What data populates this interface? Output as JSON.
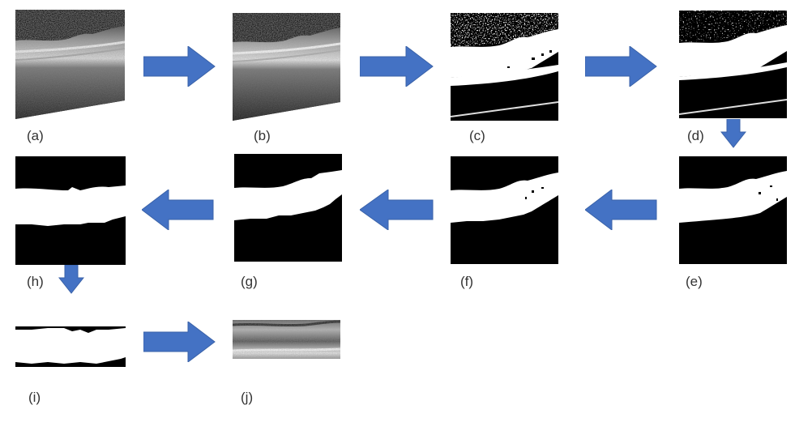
{
  "figure": {
    "description_labels": [
      "(a)",
      "(b)",
      "(c)",
      "(d)",
      "(e)",
      "(f)",
      "(g)",
      "(h)",
      "(i)",
      "(j)"
    ]
  },
  "panels": {
    "a": {
      "label": "(a)"
    },
    "b": {
      "label": "(b)"
    },
    "c": {
      "label": "(c)"
    },
    "d": {
      "label": "(d)"
    },
    "e": {
      "label": "(e)"
    },
    "f": {
      "label": "(f)"
    },
    "g": {
      "label": "(g)"
    },
    "h": {
      "label": "(h)"
    },
    "i": {
      "label": "(i)"
    },
    "j": {
      "label": "(j)"
    }
  },
  "colors": {
    "arrow": "#4472c4",
    "arrow_edge": "#3a62a8",
    "mask_white": "#ffffff",
    "mask_black": "#000000"
  }
}
